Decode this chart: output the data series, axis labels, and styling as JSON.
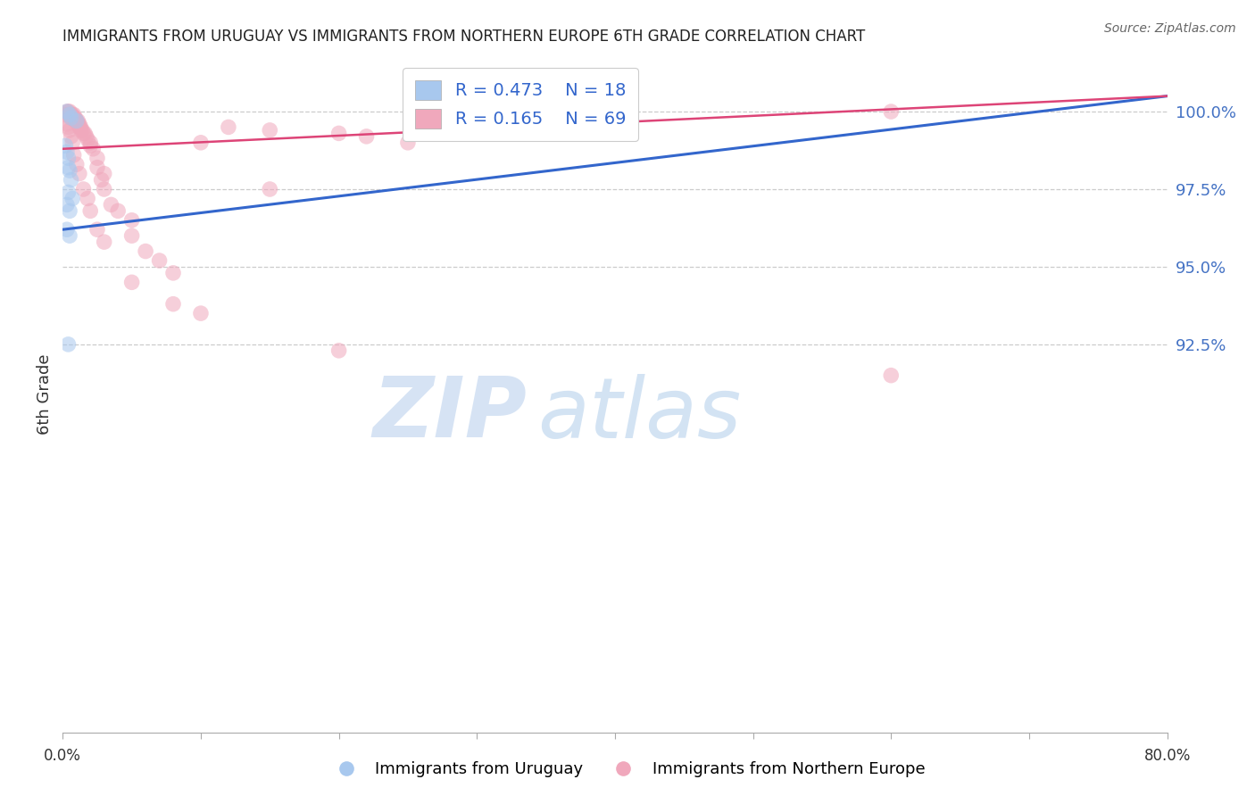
{
  "title": "IMMIGRANTS FROM URUGUAY VS IMMIGRANTS FROM NORTHERN EUROPE 6TH GRADE CORRELATION CHART",
  "source": "Source: ZipAtlas.com",
  "ylabel": "6th Grade",
  "xlim": [
    0.0,
    80.0
  ],
  "ylim": [
    80.0,
    101.8
  ],
  "yticks": [
    92.5,
    95.0,
    97.5,
    100.0
  ],
  "ytick_labels": [
    "92.5%",
    "95.0%",
    "97.5%",
    "100.0%"
  ],
  "legend_blue_r": "R = 0.473",
  "legend_blue_n": "N = 18",
  "legend_pink_r": "R = 0.165",
  "legend_pink_n": "N = 69",
  "blue_color": "#A8C8EE",
  "pink_color": "#F0A8BC",
  "blue_line_color": "#3366CC",
  "pink_line_color": "#DD4477",
  "legend_label_blue": "Immigrants from Uruguay",
  "legend_label_pink": "Immigrants from Northern Europe",
  "blue_scatter_x": [
    0.3,
    0.5,
    0.6,
    1.0,
    0.2,
    0.3,
    0.4,
    0.5,
    0.6,
    0.4,
    0.3,
    0.5,
    0.7,
    0.3,
    0.5,
    36.0,
    0.4,
    0.4
  ],
  "blue_scatter_y": [
    100.0,
    99.9,
    99.8,
    99.7,
    98.9,
    98.7,
    98.5,
    98.1,
    97.8,
    97.4,
    97.0,
    96.8,
    97.2,
    96.2,
    96.0,
    100.0,
    92.5,
    98.2
  ],
  "pink_scatter_x": [
    0.2,
    0.3,
    0.4,
    0.4,
    0.5,
    0.5,
    0.6,
    0.6,
    0.7,
    0.7,
    0.8,
    0.8,
    0.9,
    0.9,
    1.0,
    1.0,
    1.1,
    1.1,
    1.2,
    1.2,
    1.3,
    1.3,
    1.4,
    1.5,
    1.6,
    1.7,
    1.8,
    2.0,
    2.0,
    2.2,
    2.5,
    2.5,
    2.8,
    3.0,
    3.0,
    3.5,
    4.0,
    5.0,
    5.0,
    6.0,
    7.0,
    8.0,
    10.0,
    12.0,
    15.0,
    20.0,
    22.0,
    25.0,
    30.0,
    60.0,
    0.3,
    0.4,
    0.5,
    0.6,
    0.7,
    0.8,
    1.0,
    1.2,
    1.5,
    1.8,
    2.0,
    2.5,
    3.0,
    5.0,
    8.0,
    10.0,
    15.0,
    20.0,
    60.0
  ],
  "pink_scatter_y": [
    99.9,
    100.0,
    99.9,
    100.0,
    99.9,
    100.0,
    99.8,
    99.9,
    99.8,
    99.9,
    99.8,
    99.9,
    99.8,
    99.7,
    99.7,
    99.7,
    99.6,
    99.7,
    99.6,
    99.5,
    99.5,
    99.4,
    99.4,
    99.3,
    99.3,
    99.2,
    99.1,
    99.0,
    98.9,
    98.8,
    98.5,
    98.2,
    97.8,
    97.5,
    98.0,
    97.0,
    96.8,
    96.5,
    96.0,
    95.5,
    95.2,
    94.8,
    99.0,
    99.5,
    99.4,
    99.3,
    99.2,
    99.0,
    99.7,
    100.0,
    99.6,
    99.5,
    99.4,
    99.2,
    99.0,
    98.6,
    98.3,
    98.0,
    97.5,
    97.2,
    96.8,
    96.2,
    95.8,
    94.5,
    93.8,
    93.5,
    97.5,
    92.3,
    91.5
  ],
  "blue_trendline_x0": 0.0,
  "blue_trendline_y0": 96.2,
  "blue_trendline_x1": 80.0,
  "blue_trendline_y1": 100.5,
  "pink_trendline_x0": 0.0,
  "pink_trendline_y0": 98.8,
  "pink_trendline_x1": 80.0,
  "pink_trendline_y1": 100.5,
  "watermark_zip": "ZIP",
  "watermark_atlas": "atlas",
  "background_color": "#FFFFFF"
}
